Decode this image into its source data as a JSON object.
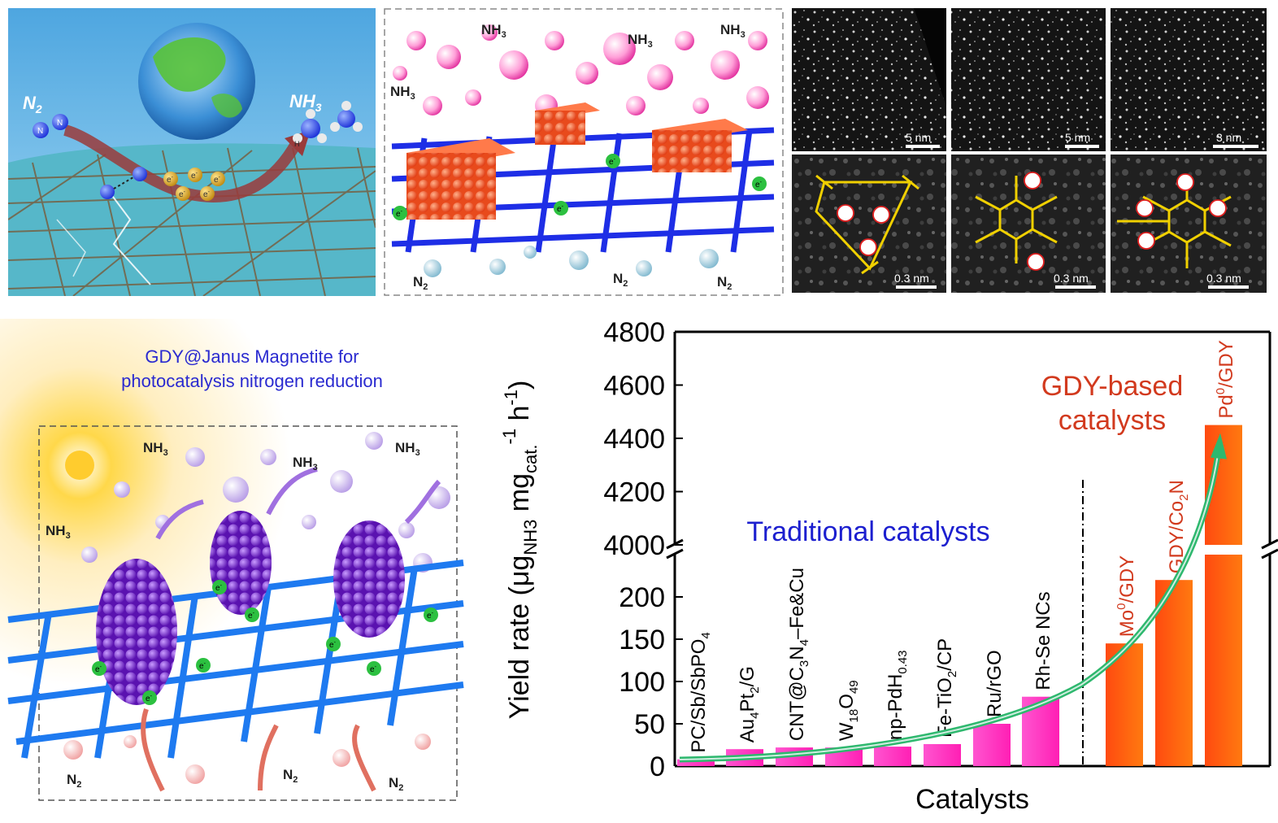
{
  "panel_a": {
    "n2_label": "N",
    "n2_sub": "2",
    "nh3_label": "NH",
    "nh3_sub": "3",
    "electron": "e",
    "electron_sup": "-",
    "h_atom": "H",
    "n_atom": "N"
  },
  "panel_b": {
    "nh3": "NH",
    "nh3_sub": "3",
    "n2": "N",
    "n2_sub": "2",
    "electron": "e",
    "electron_sup": "-"
  },
  "panel_c": {
    "scale_top": [
      "5 nm",
      "5 nm",
      "3 nm"
    ],
    "scale_bottom": [
      "0.3 nm",
      "0.3 nm",
      "0.3 nm"
    ]
  },
  "panel_d": {
    "title_line1": "GDY@Janus Magnetite for",
    "title_line2": "photocatalysis nitrogen reduction",
    "nh3": "NH",
    "nh3_sub": "3",
    "n2": "N",
    "n2_sub": "2",
    "electron": "e",
    "electron_sup": "-"
  },
  "chart_data": {
    "type": "bar",
    "title": "",
    "xlabel": "Catalysts",
    "ylabel": {
      "prefix": "Yield rate (",
      "mu": "μg",
      "nh3_sub": "NH3",
      "mg": " mg",
      "cat_sub": "cat.",
      "h": " h",
      "exp1": "-1",
      "exp2": "-1",
      "suffix": ")"
    },
    "axis_break": true,
    "lower_range": [
      0,
      250
    ],
    "upper_range": [
      4000,
      4800
    ],
    "lower_ticks": [
      "0",
      "50",
      "100",
      "150",
      "200"
    ],
    "upper_ticks": [
      "4000",
      "4200",
      "4400",
      "4600",
      "4800"
    ],
    "group_labels": {
      "traditional": "Traditional catalysts",
      "gdy_line1": "GDY-based",
      "gdy_line2": "catalysts"
    },
    "colors": {
      "traditional_bar": "#ff1fb4",
      "gdy_bar": "#ff7a10",
      "trend": "#2eb86e",
      "traditional_text": "#1c1fcf",
      "gdy_text": "#d23a1e"
    },
    "categories": [
      {
        "parts": [
          [
            "PC/Sb/SbPO",
            ""
          ],
          [
            "4",
            "sub"
          ]
        ],
        "value": 8,
        "group": "traditional"
      },
      {
        "parts": [
          [
            "Au",
            ""
          ],
          [
            "4",
            "sub"
          ],
          [
            "Pt",
            ""
          ],
          [
            "2",
            "sub"
          ],
          [
            "/G",
            ""
          ]
        ],
        "value": 20,
        "group": "traditional"
      },
      {
        "parts": [
          [
            "CNT@C",
            ""
          ],
          [
            "3",
            "sub"
          ],
          [
            "N",
            ""
          ],
          [
            "4",
            "sub"
          ],
          [
            "–Fe&Cu",
            ""
          ]
        ],
        "value": 22,
        "group": "traditional"
      },
      {
        "parts": [
          [
            "W",
            ""
          ],
          [
            "18",
            "sub"
          ],
          [
            "O",
            ""
          ],
          [
            "49",
            "sub"
          ]
        ],
        "value": 22,
        "group": "traditional"
      },
      {
        "parts": [
          [
            "np-PdH",
            ""
          ],
          [
            "0.43",
            "sub"
          ]
        ],
        "value": 23,
        "group": "traditional"
      },
      {
        "parts": [
          [
            "Fe-TiO",
            ""
          ],
          [
            "2",
            "sub"
          ],
          [
            "/CP",
            ""
          ]
        ],
        "value": 26,
        "group": "traditional"
      },
      {
        "parts": [
          [
            "Ru/rGO",
            ""
          ]
        ],
        "value": 50,
        "group": "traditional"
      },
      {
        "parts": [
          [
            "Rh-Se NCs",
            ""
          ]
        ],
        "value": 82,
        "group": "traditional"
      },
      {
        "parts": [
          [
            "Mo",
            ""
          ],
          [
            "0",
            "sup"
          ],
          [
            "/GDY",
            ""
          ]
        ],
        "value": 145,
        "group": "gdy"
      },
      {
        "parts": [
          [
            "GDY/Co",
            ""
          ],
          [
            "2",
            "sub"
          ],
          [
            "N",
            ""
          ]
        ],
        "value": 220,
        "group": "gdy"
      },
      {
        "parts": [
          [
            "Pd",
            ""
          ],
          [
            "0",
            "sup"
          ],
          [
            "/GDY",
            ""
          ]
        ],
        "value": 4450,
        "group": "gdy"
      }
    ]
  }
}
